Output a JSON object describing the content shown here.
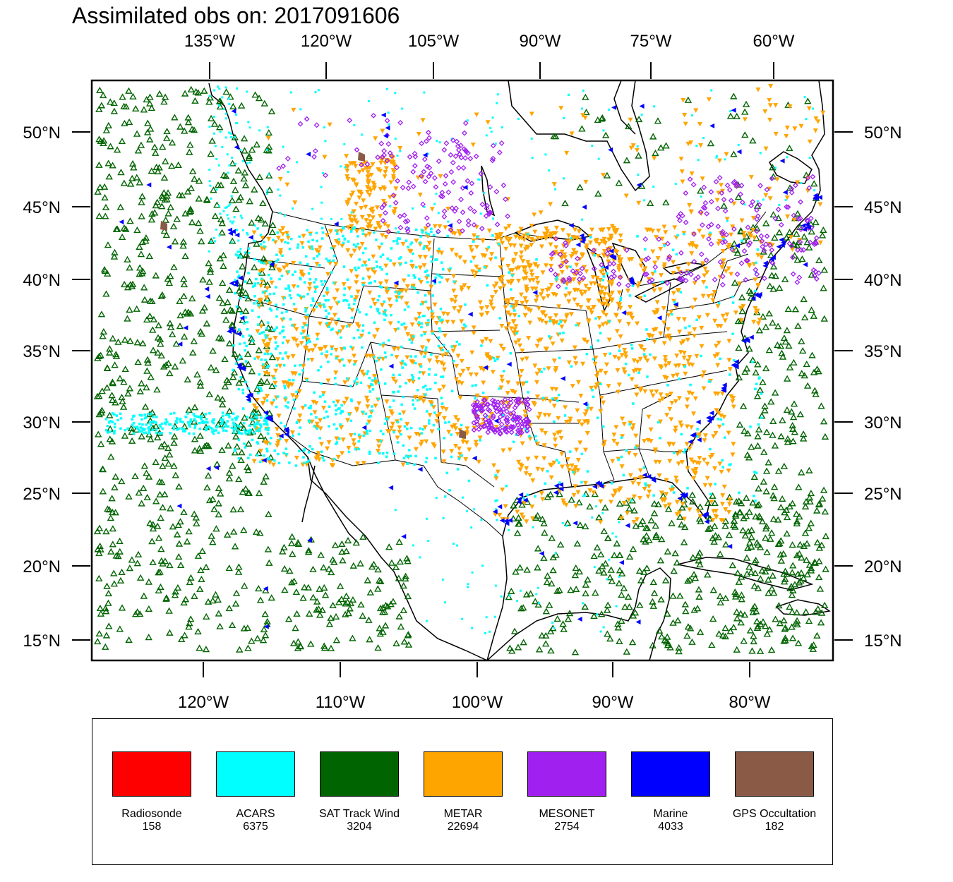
{
  "title": "Assimilated obs on: 2017091606",
  "axes": {
    "top_lon_labels": [
      "135°W",
      "120°W",
      "105°W",
      "90°W",
      "75°W",
      "60°W"
    ],
    "bottom_lon_labels": [
      "120°W",
      "110°W",
      "100°W",
      "90°W",
      "80°W"
    ],
    "left_lat_labels": [
      "50°N",
      "45°N",
      "40°N",
      "35°N",
      "30°N",
      "25°N",
      "20°N",
      "15°N"
    ],
    "right_lat_labels": [
      "50°N",
      "45°N",
      "40°N",
      "35°N",
      "30°N",
      "25°N",
      "20°N",
      "15°N"
    ]
  },
  "legend": [
    {
      "name": "Radiosonde",
      "count": "158",
      "color": "#ff0000"
    },
    {
      "name": "ACARS",
      "count": "6375",
      "color": "#00ffff"
    },
    {
      "name": "SAT Track Wind",
      "count": "3204",
      "color": "#006400"
    },
    {
      "name": "METAR",
      "count": "22694",
      "color": "#ffa500"
    },
    {
      "name": "MESONET",
      "count": "2754",
      "color": "#a020f0"
    },
    {
      "name": "Marine",
      "count": "4033",
      "color": "#0000ff"
    },
    {
      "name": "GPS Occultation",
      "count": "182",
      "color": "#8b5a46"
    }
  ]
}
